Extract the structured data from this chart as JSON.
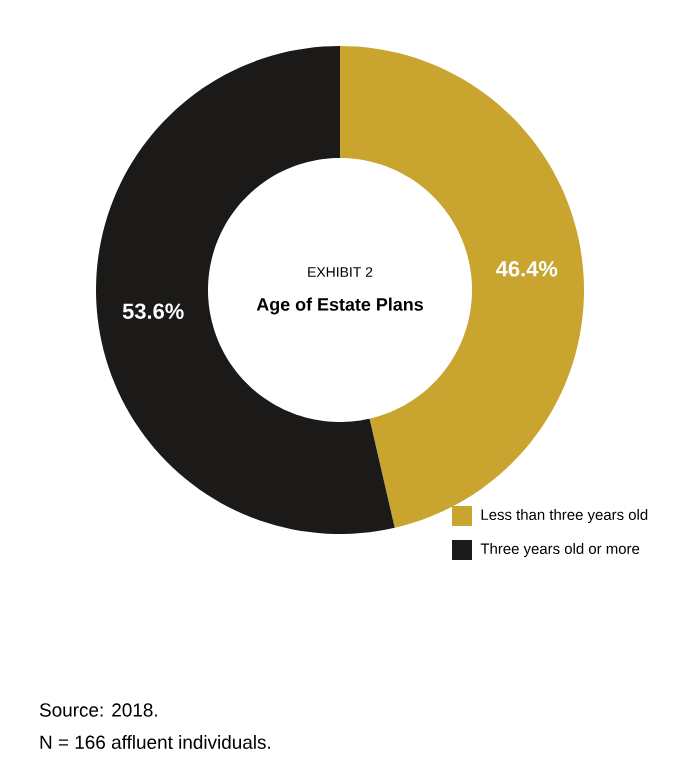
{
  "chart_data": {
    "type": "donut",
    "title": "EXHIBIT 2",
    "subtitle": "Age of Estate Plans",
    "categories": [
      "Less than three years old",
      "Three years old or more"
    ],
    "values": [
      46.4,
      53.6
    ],
    "colors": [
      "#c9a42e",
      "#1b1a18"
    ],
    "value_labels": [
      "46.4%",
      "53.6%"
    ],
    "legend": "bottom right",
    "annotations": [
      "Source: 2018.",
      "N = 166 affluent individuals."
    ]
  }
}
